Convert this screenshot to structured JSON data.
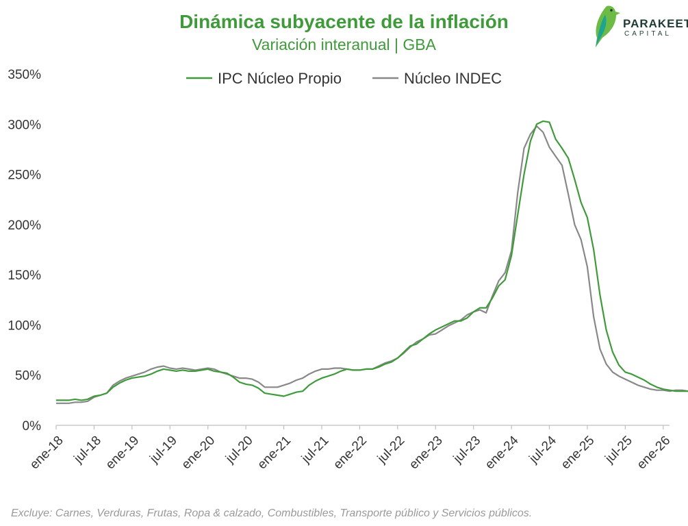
{
  "branding": {
    "name": "PARAKEET",
    "sub": "CAPITAL",
    "colors": {
      "green": "#6dbb45",
      "teal": "#1ea58f"
    }
  },
  "footnote": "Excluye: Carnes, Verduras, Frutas, Ropa & calzado, Combustibles, Transporte público y Servicios públicos.",
  "chart_data": {
    "type": "line",
    "title": "Dinámica subyacente de la inflación",
    "subtitle": "Variación interanual | GBA",
    "ylim": [
      0,
      350
    ],
    "yticks": [
      0,
      50,
      100,
      150,
      200,
      250,
      300,
      350
    ],
    "ytick_labels": [
      "0%",
      "50%",
      "100%",
      "150%",
      "200%",
      "250%",
      "300%",
      "350%"
    ],
    "xlim": [
      0,
      97
    ],
    "xticks": [
      0,
      6,
      12,
      18,
      24,
      30,
      36,
      42,
      48,
      54,
      60,
      66,
      72,
      78,
      84,
      90,
      96
    ],
    "xtick_labels": [
      "ene-18",
      "jul-18",
      "ene-19",
      "jul-19",
      "ene-20",
      "jul-20",
      "ene-21",
      "jul-21",
      "ene-22",
      "jul-22",
      "ene-23",
      "jul-23",
      "ene-24",
      "jul-24",
      "ene-25",
      "jul-25",
      "ene-26"
    ],
    "legend_position": "top-center",
    "series": [
      {
        "name": "IPC Núcleo Propio",
        "color": "#3f9a3a",
        "values": [
          25,
          25,
          25,
          26,
          25,
          26,
          29,
          30,
          32,
          38,
          42,
          45,
          47,
          48,
          49,
          51,
          54,
          56,
          55,
          54,
          55,
          54,
          54,
          55,
          56,
          54,
          53,
          52,
          48,
          43,
          41,
          40,
          37,
          32,
          31,
          30,
          29,
          31,
          33,
          34,
          40,
          44,
          47,
          49,
          51,
          54,
          56,
          55,
          55,
          56,
          56,
          58,
          61,
          63,
          67,
          73,
          79,
          81,
          86,
          91,
          95,
          98,
          101,
          104,
          104,
          107,
          113,
          117,
          117,
          127,
          139,
          145,
          169,
          210,
          250,
          283,
          300,
          303,
          302,
          285,
          276,
          266,
          245,
          222,
          207,
          175,
          130,
          95,
          73,
          60,
          53,
          51,
          48,
          45,
          41,
          38,
          36,
          35,
          34,
          34,
          34
        ]
      },
      {
        "name": "Núcleo INDEC",
        "color": "#888888",
        "values": [
          22,
          22,
          22,
          23,
          23,
          24,
          28,
          30,
          32,
          40,
          44,
          47,
          49,
          51,
          53,
          56,
          58,
          59,
          57,
          56,
          57,
          56,
          55,
          56,
          57,
          56,
          53,
          51,
          49,
          47,
          47,
          46,
          43,
          38,
          38,
          38,
          40,
          42,
          45,
          47,
          51,
          54,
          56,
          56,
          57,
          57,
          56,
          55,
          55,
          56,
          56,
          59,
          62,
          64,
          67,
          72,
          78,
          83,
          86,
          90,
          91,
          95,
          99,
          102,
          105,
          110,
          113,
          115,
          112,
          129,
          144,
          152,
          174,
          232,
          276,
          290,
          298,
          292,
          277,
          268,
          259,
          230,
          200,
          185,
          158,
          108,
          76,
          61,
          53,
          49,
          46,
          43,
          40,
          38,
          36,
          35,
          35,
          34,
          35,
          35,
          34
        ]
      }
    ]
  }
}
